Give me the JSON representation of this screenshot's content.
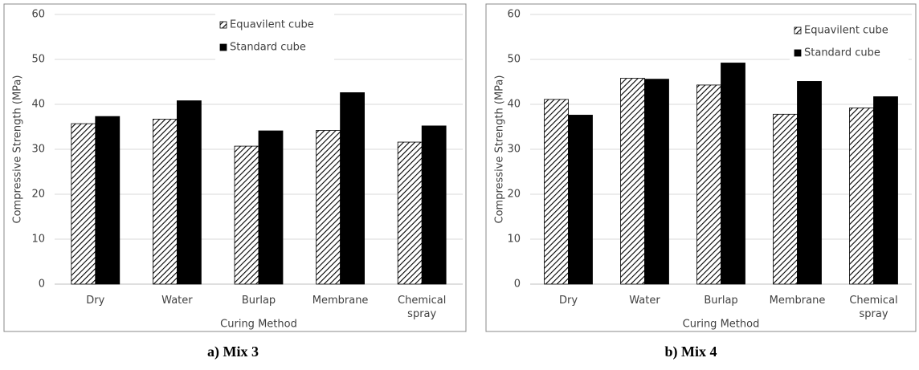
{
  "chart_data": [
    {
      "type": "bar",
      "caption": "a) Mix 3",
      "x_label": "Curing Method",
      "y_label": "Compressive Strength (MPa)",
      "categories": [
        "Dry",
        "Water",
        "Burlap",
        "Membrane",
        "Chemical spray"
      ],
      "series": [
        {
          "name": "Equavilent cube",
          "color": "#000000",
          "pattern": "hatch",
          "values": [
            35.7,
            36.7,
            30.7,
            34.2,
            31.6
          ]
        },
        {
          "name": "Standard cube",
          "color": "#000000",
          "values": [
            37.3,
            40.8,
            34.1,
            42.6,
            35.2
          ]
        }
      ],
      "ylim": [
        0,
        60
      ],
      "yticks": [
        0,
        10,
        20,
        30,
        40,
        50,
        60
      ],
      "grid": true,
      "legend": "top-center"
    },
    {
      "type": "bar",
      "caption": "b) Mix 4",
      "x_label": "Curing Method",
      "y_label": "Compressive Strength (MPa)",
      "categories": [
        "Dry",
        "Water",
        "Burlap",
        "Membrane",
        "Chemical spray"
      ],
      "series": [
        {
          "name": "Equavilent cube",
          "color": "#000000",
          "pattern": "hatch",
          "values": [
            41.1,
            45.8,
            44.3,
            37.8,
            39.2
          ]
        },
        {
          "name": "Standard cube",
          "color": "#000000",
          "values": [
            37.6,
            45.6,
            49.2,
            45.1,
            41.7
          ]
        }
      ],
      "ylim": [
        0,
        60
      ],
      "yticks": [
        0,
        10,
        20,
        30,
        40,
        50,
        60
      ],
      "grid": true,
      "legend": "top-right"
    }
  ]
}
